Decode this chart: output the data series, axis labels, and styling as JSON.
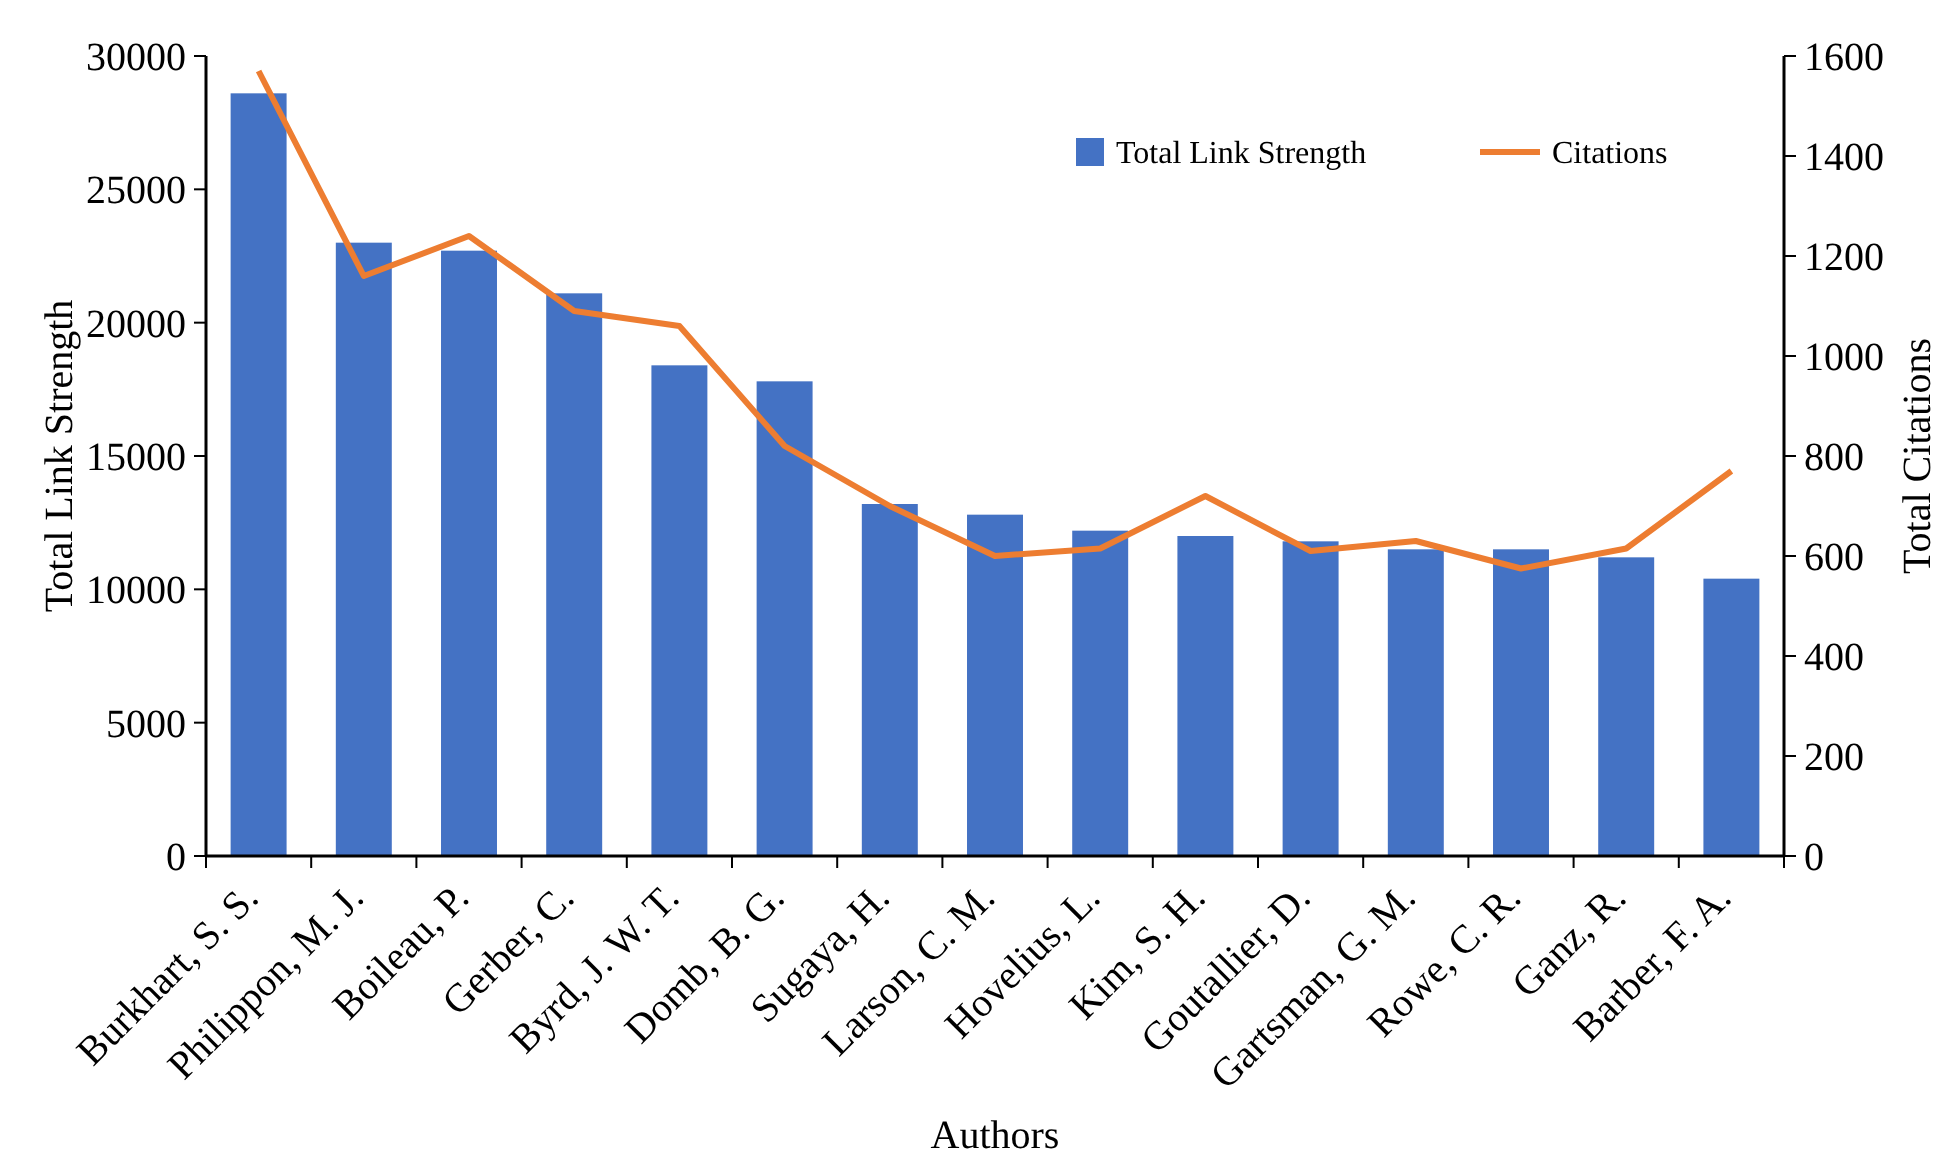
{
  "chart_data": {
    "type": "bar",
    "xlabel": "Authors",
    "ylabel": "Total Link Strength",
    "y2label": "Total Citations",
    "categories": [
      "Burkhart, S. S.",
      "Philippon, M. J.",
      "Boileau, P.",
      "Gerber, C.",
      "Byrd, J. W. T.",
      "Domb, B. G.",
      "Sugaya, H.",
      "Larson, C. M.",
      "Hovelius, L.",
      "Kim, S. H.",
      "Goutallier, D.",
      "Gartsman, G. M.",
      "Rowe, C. R.",
      "Ganz, R.",
      "Barber, F. A."
    ],
    "series": [
      {
        "name": "Total Link Strength",
        "type": "bar",
        "color": "#4472c4",
        "values": [
          28600,
          23000,
          22700,
          21100,
          18400,
          17800,
          13200,
          12800,
          12200,
          12000,
          11800,
          11500,
          11500,
          11200,
          10400
        ]
      },
      {
        "name": "Citations",
        "type": "line",
        "axis": "y2",
        "color": "#ed7d31",
        "values": [
          1570,
          1160,
          1240,
          1090,
          1060,
          820,
          700,
          600,
          615,
          720,
          610,
          630,
          575,
          615,
          770
        ]
      }
    ],
    "ylim": [
      0,
      30000
    ],
    "yticks": [
      0,
      5000,
      10000,
      15000,
      20000,
      25000,
      30000
    ],
    "y2lim": [
      0,
      1600
    ],
    "y2ticks": [
      0,
      200,
      400,
      600,
      800,
      1000,
      1200,
      1400,
      1600
    ],
    "legend": "top right",
    "grid": false,
    "marker": "none",
    "line_style": "solid"
  }
}
